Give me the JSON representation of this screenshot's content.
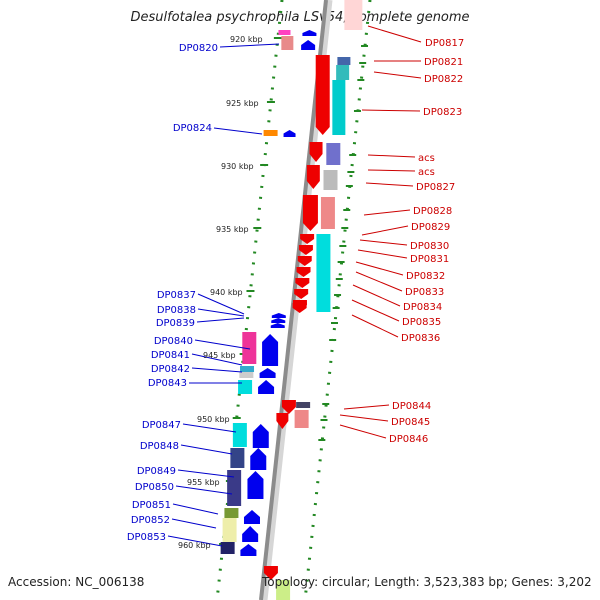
{
  "title": "Desulfotalea psychrophila LSv54, complete genome",
  "accession": "Accession: NC_006138",
  "topology": "Topology: circular; Length: 3,523,383 bp; Genes: 3,202",
  "colors": {
    "forward": "#0000ee",
    "reverse": "#ee0000",
    "backbone": "#8c8c8c",
    "tick": "#228822"
  },
  "scale_labels": [
    "920 kbp",
    "925 kbp",
    "930 kbp",
    "935 kbp",
    "940 kbp",
    "945 kbp",
    "950 kbp",
    "955 kbp",
    "960 kbp"
  ],
  "left_genes": [
    "DP0820",
    "DP0824",
    "DP0837",
    "DP0838",
    "DP0839",
    "DP0840",
    "DP0841",
    "DP0842",
    "DP0843",
    "DP0847",
    "DP0848",
    "DP0849",
    "DP0850",
    "DP0851",
    "DP0852",
    "DP0853"
  ],
  "right_genes": [
    "DP0817",
    "DP0821",
    "DP0822",
    "DP0823",
    "acs",
    "acs",
    "DP0827",
    "DP0828",
    "DP0829",
    "DP0830",
    "DP0831",
    "DP0832",
    "DP0833",
    "DP0834",
    "DP0835",
    "DP0836",
    "DP0844",
    "DP0845",
    "DP0846"
  ]
}
